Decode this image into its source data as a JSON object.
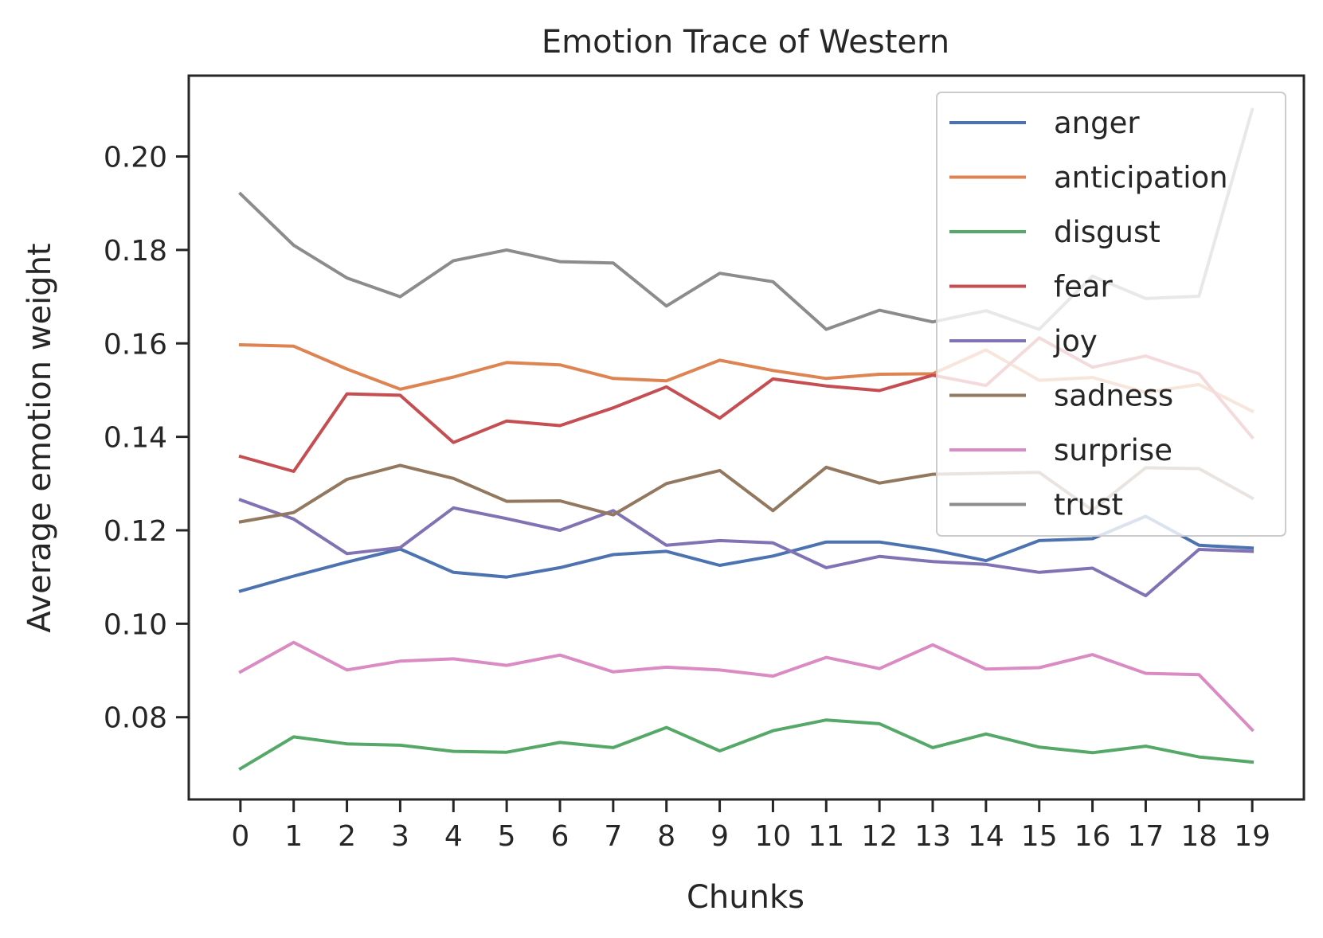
{
  "chart_data": {
    "type": "line",
    "title": "Emotion Trace of Western",
    "xlabel": "Chunks",
    "ylabel": "Average emotion weight",
    "x": [
      0,
      1,
      2,
      3,
      4,
      5,
      6,
      7,
      8,
      9,
      10,
      11,
      12,
      13,
      14,
      15,
      16,
      17,
      18,
      19
    ],
    "x_tick_labels": [
      "0",
      "1",
      "2",
      "3",
      "4",
      "5",
      "6",
      "7",
      "8",
      "9",
      "10",
      "11",
      "12",
      "13",
      "14",
      "15",
      "16",
      "17",
      "18",
      "19"
    ],
    "y_ticks": [
      0.08,
      0.1,
      0.12,
      0.14,
      0.16,
      0.18,
      0.2
    ],
    "y_tick_labels": [
      "0.08",
      "0.10",
      "0.12",
      "0.14",
      "0.16",
      "0.18",
      "0.20"
    ],
    "xlim": [
      -0.97,
      19.97
    ],
    "ylim": [
      0.0624,
      0.2173
    ],
    "grid": false,
    "legend_position": "top-right",
    "series": [
      {
        "name": "anger",
        "color": "#4c72b0",
        "values": [
          0.107,
          0.1102,
          0.1132,
          0.116,
          0.111,
          0.11,
          0.112,
          0.1148,
          0.1155,
          0.1125,
          0.1145,
          0.1175,
          0.1175,
          0.1158,
          0.1135,
          0.1178,
          0.1182,
          0.123,
          0.1168,
          0.1162
        ]
      },
      {
        "name": "anticipation",
        "color": "#dd8452",
        "values": [
          0.1597,
          0.1594,
          0.1545,
          0.1502,
          0.1528,
          0.1559,
          0.1554,
          0.1525,
          0.152,
          0.1564,
          0.1542,
          0.1525,
          0.1534,
          0.1535,
          0.1586,
          0.1521,
          0.1527,
          0.1495,
          0.1512,
          0.1455
        ]
      },
      {
        "name": "disgust",
        "color": "#55a868",
        "values": [
          0.069,
          0.0758,
          0.0743,
          0.074,
          0.0727,
          0.0725,
          0.0746,
          0.0735,
          0.0778,
          0.0728,
          0.0771,
          0.0794,
          0.0786,
          0.0735,
          0.0764,
          0.0736,
          0.0724,
          0.0738,
          0.0715,
          0.0704
        ]
      },
      {
        "name": "fear",
        "color": "#c44e52",
        "values": [
          0.1358,
          0.1326,
          0.1492,
          0.1489,
          0.1388,
          0.1434,
          0.1424,
          0.1462,
          0.1507,
          0.144,
          0.1524,
          0.1509,
          0.1499,
          0.1532,
          0.151,
          0.1612,
          0.1549,
          0.1573,
          0.1535,
          0.1399
        ]
      },
      {
        "name": "joy",
        "color": "#8172b3",
        "values": [
          0.1265,
          0.1224,
          0.115,
          0.1163,
          0.1248,
          0.1225,
          0.12,
          0.1242,
          0.1168,
          0.1178,
          0.1173,
          0.112,
          0.1144,
          0.1133,
          0.1127,
          0.111,
          0.1119,
          0.106,
          0.1159,
          0.1155
        ]
      },
      {
        "name": "sadness",
        "color": "#937860",
        "values": [
          0.1218,
          0.1238,
          0.1309,
          0.1339,
          0.1311,
          0.1262,
          0.1263,
          0.1233,
          0.13,
          0.1328,
          0.1242,
          0.1335,
          0.1301,
          0.132,
          0.1322,
          0.1324,
          0.1243,
          0.1334,
          0.1332,
          0.1269
        ]
      },
      {
        "name": "surprise",
        "color": "#da8bc3",
        "values": [
          0.0897,
          0.096,
          0.0901,
          0.092,
          0.0925,
          0.0911,
          0.0933,
          0.0897,
          0.0907,
          0.0901,
          0.0888,
          0.0928,
          0.0904,
          0.0955,
          0.0903,
          0.0906,
          0.0934,
          0.0894,
          0.0891,
          0.0773
        ]
      },
      {
        "name": "trust",
        "color": "#8c8c8c",
        "values": [
          0.192,
          0.181,
          0.174,
          0.17,
          0.1777,
          0.18,
          0.1775,
          0.1772,
          0.168,
          0.175,
          0.1732,
          0.163,
          0.1671,
          0.1646,
          0.167,
          0.163,
          0.1744,
          0.1696,
          0.1701,
          0.21
        ]
      }
    ]
  }
}
